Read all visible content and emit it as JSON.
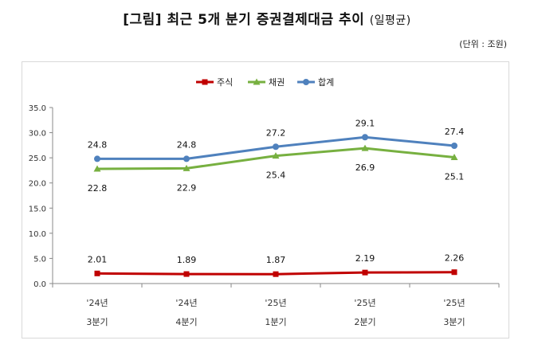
{
  "title": "[그림] 최근 5개 분기 증권결제대금 추이",
  "subtitle": "(일평균)",
  "unit_note": "(단위 : 조원)",
  "chart_data": {
    "type": "line",
    "categories": [
      [
        "'24년",
        "3분기"
      ],
      [
        "'24년",
        "4분기"
      ],
      [
        "'25년",
        "1분기"
      ],
      [
        "'25년",
        "2분기"
      ],
      [
        "'25년",
        "3분기"
      ]
    ],
    "series": [
      {
        "name": "주식",
        "values": [
          2.01,
          1.89,
          1.87,
          2.19,
          2.26
        ],
        "labels": [
          "2.01",
          "1.89",
          "1.87",
          "2.19",
          "2.26"
        ],
        "color": "#c00000",
        "marker": "square",
        "label_pos": "above"
      },
      {
        "name": "채권",
        "values": [
          22.8,
          22.9,
          25.4,
          26.9,
          25.1
        ],
        "labels": [
          "22.8",
          "22.9",
          "25.4",
          "26.9",
          "25.1"
        ],
        "color": "#77b040",
        "marker": "triangle",
        "label_pos": "below"
      },
      {
        "name": "합계",
        "values": [
          24.8,
          24.8,
          27.2,
          29.1,
          27.4
        ],
        "labels": [
          "24.8",
          "24.8",
          "27.2",
          "29.1",
          "27.4"
        ],
        "color": "#4f81bd",
        "marker": "circle",
        "label_pos": "above"
      }
    ],
    "ylim": [
      0,
      35
    ],
    "yticks": [
      "0.0",
      "5.0",
      "10.0",
      "15.0",
      "20.0",
      "25.0",
      "30.0",
      "35.0"
    ],
    "ytick_values": [
      0,
      5,
      10,
      15,
      20,
      25,
      30,
      35
    ],
    "legend": "top-center",
    "grid": false
  }
}
